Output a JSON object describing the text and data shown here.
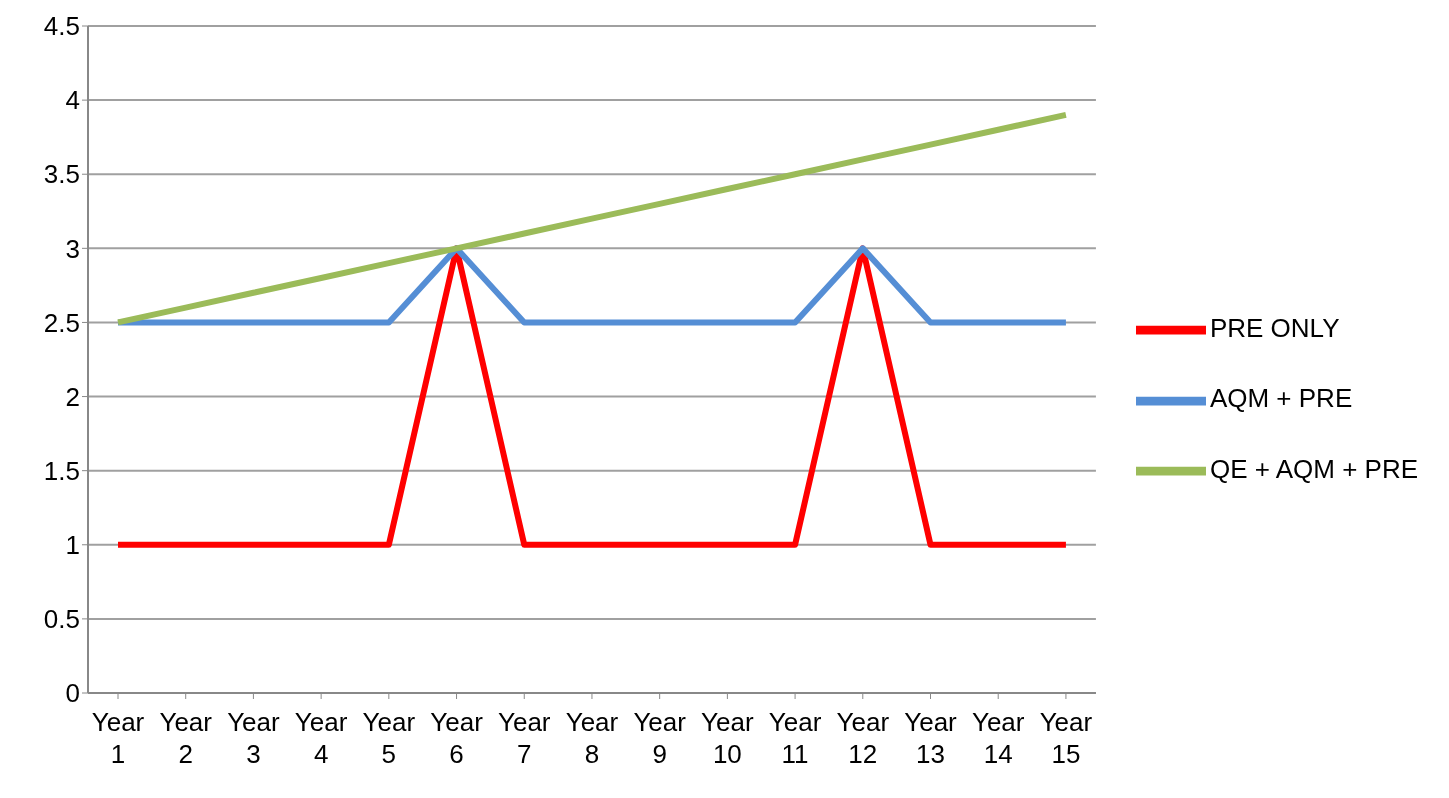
{
  "chart_data": {
    "type": "line",
    "categories": [
      "Year 1",
      "Year 2",
      "Year 3",
      "Year 4",
      "Year 5",
      "Year 6",
      "Year 7",
      "Year 8",
      "Year 9",
      "Year 10",
      "Year 11",
      "Year 12",
      "Year 13",
      "Year 14",
      "Year 15"
    ],
    "series": [
      {
        "name": "PRE ONLY",
        "color": "#ff0000",
        "values": [
          1,
          1,
          1,
          1,
          1,
          3,
          1,
          1,
          1,
          1,
          1,
          3,
          1,
          1,
          1
        ]
      },
      {
        "name": "AQM + PRE",
        "color": "#558ed5",
        "values": [
          2.5,
          2.5,
          2.5,
          2.5,
          2.5,
          3,
          2.5,
          2.5,
          2.5,
          2.5,
          2.5,
          3,
          2.5,
          2.5,
          2.5
        ]
      },
      {
        "name": "QE + AQM + PRE",
        "color": "#9bbb59",
        "values": [
          2.5,
          2.6,
          2.7,
          2.8,
          2.9,
          3,
          3.1,
          3.2,
          3.3,
          3.4,
          3.5,
          3.6,
          3.7,
          3.8,
          3.9
        ]
      }
    ],
    "ylim": [
      0,
      4.5
    ],
    "yticks": [
      0,
      0.5,
      1,
      1.5,
      2,
      2.5,
      3,
      3.5,
      4,
      4.5
    ],
    "grid": "y",
    "legend": "right",
    "marker": "none",
    "line_style": "solid"
  }
}
